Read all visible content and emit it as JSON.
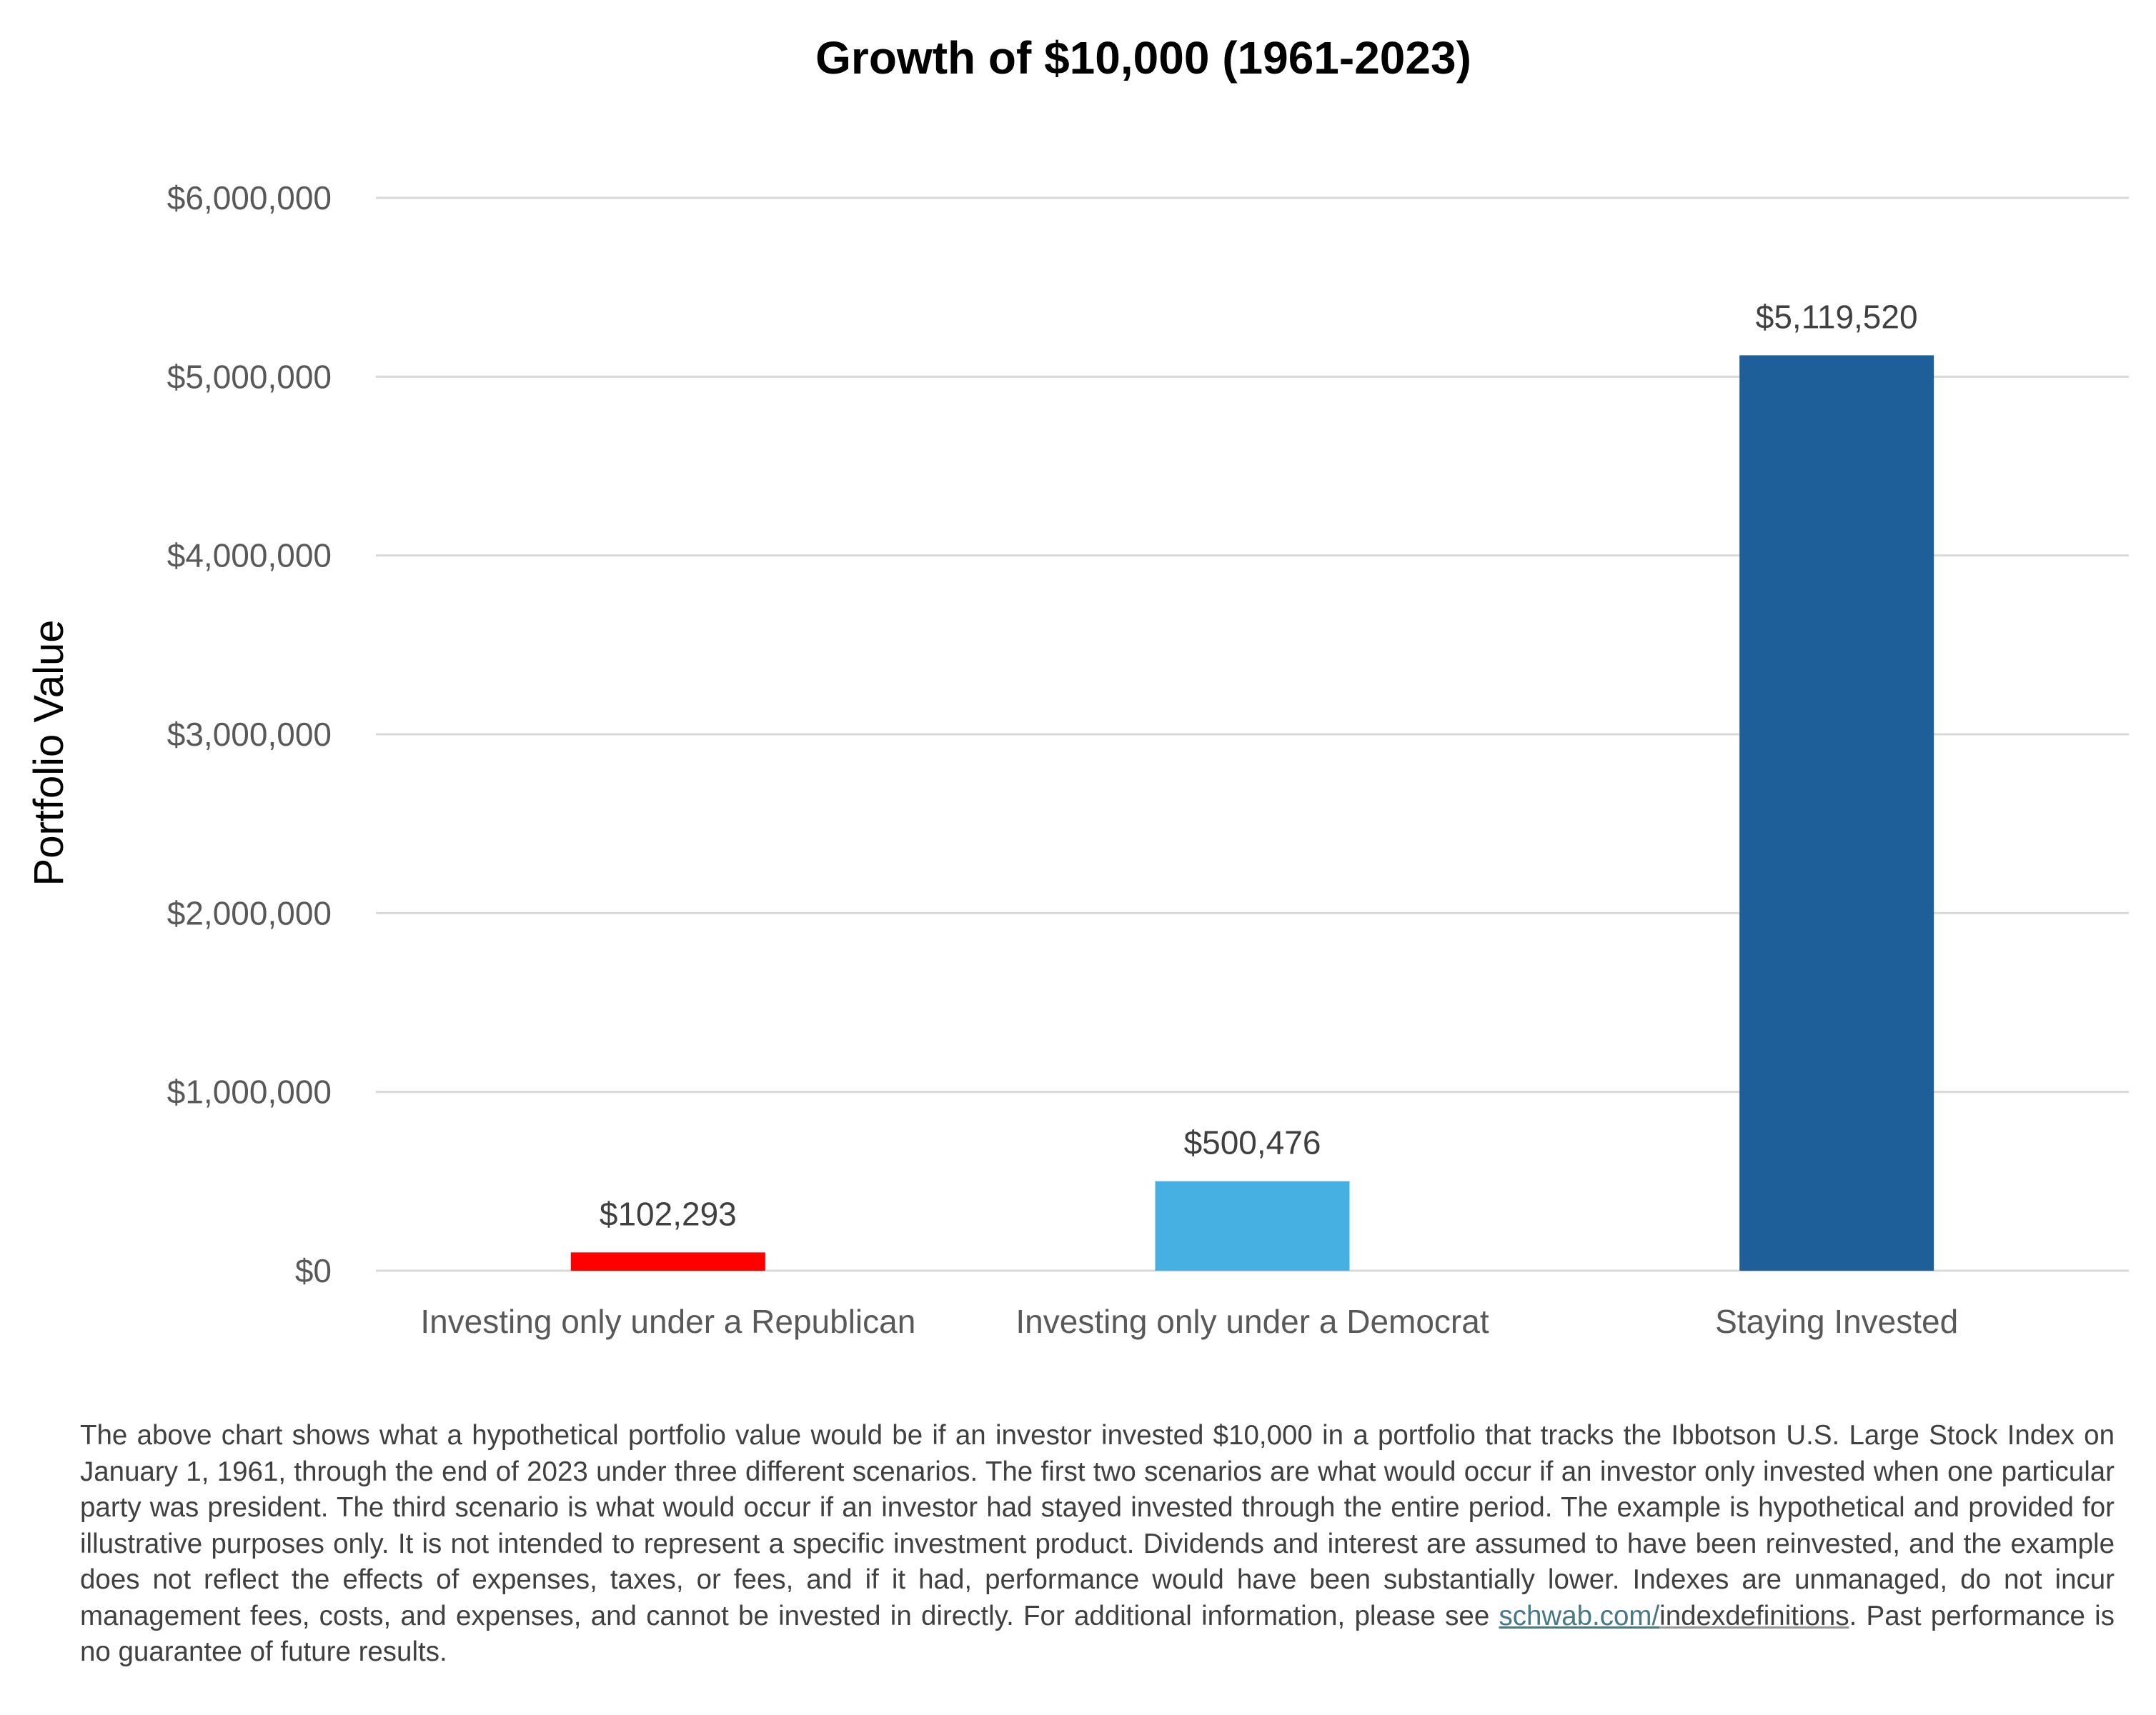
{
  "chart_data": {
    "type": "bar",
    "title": "Growth of $10,000 (1961-2023)",
    "xlabel": "",
    "ylabel": "Portfolio Value",
    "categories": [
      "Investing only under a Republican",
      "Investing only under a Democrat",
      "Staying Invested"
    ],
    "values": [
      102293,
      500476,
      5119520
    ],
    "data_labels": [
      "$102,293",
      "$500,476",
      "$5,119,520"
    ],
    "colors": [
      "#FF0000",
      "#45B0E1",
      "#1F5F99"
    ],
    "ylim": [
      0,
      6000000
    ],
    "yticks": [
      0,
      1000000,
      2000000,
      3000000,
      4000000,
      5000000,
      6000000
    ],
    "ytick_labels": [
      "$0",
      "$1,000,000",
      "$2,000,000",
      "$3,000,000",
      "$4,000,000",
      "$5,000,000",
      "$6,000,000"
    ],
    "grid": true,
    "legend": "none"
  },
  "footnote": {
    "text_before": "The above chart shows what a hypothetical portfolio value would be if an investor invested $10,000 in a portfolio that tracks the Ibbotson U.S. Large Stock Index on January 1, 1961, through the end of 2023 under three different scenarios. The first two scenarios are what would occur if an investor only invested when one particular party was president. The third scenario is what would occur if an investor had stayed invested through the entire period. The example is hypothetical and provided for illustrative purposes only. It is not intended to represent a specific investment product. Dividends and interest are assumed to have been reinvested, and the example does not reflect the effects of expenses, taxes, or fees, and if it had, performance would have been substantially lower. Indexes are unmanaged, do not incur management fees, costs, and expenses, and cannot be invested in directly.  For additional information, please see ",
    "link_text": "schwab.com/",
    "link_rest": "indexdefinitions",
    "text_after": ". Past performance is no guarantee of future results."
  }
}
